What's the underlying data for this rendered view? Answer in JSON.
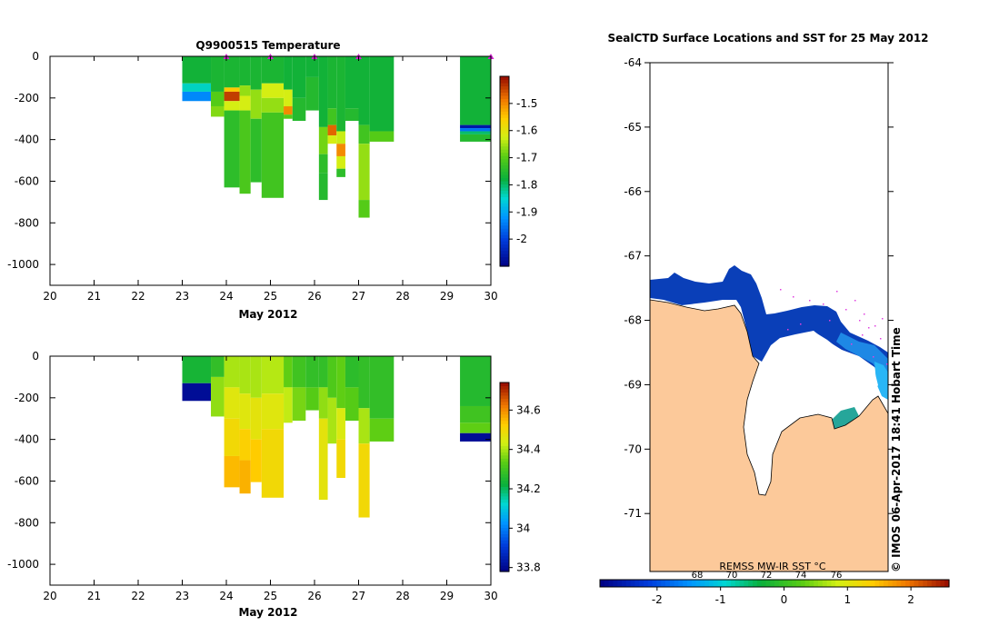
{
  "chart_data": [
    {
      "type": "heatmap",
      "title": "Q9900515  Temperature",
      "xlabel": "May 2012",
      "ylabel": "",
      "xlim": [
        20,
        30
      ],
      "ylim": [
        -1100,
        0
      ],
      "xticks": [
        20,
        21,
        22,
        23,
        24,
        25,
        26,
        27,
        28,
        29,
        30
      ],
      "yticks": [
        0,
        -200,
        -400,
        -600,
        -800,
        -1000
      ],
      "colorbar": {
        "min": -2.1,
        "max": -1.4,
        "ticks": [
          -1.5,
          -1.6,
          -1.7,
          -1.8,
          -1.9,
          -2
        ]
      },
      "markers_x": [
        24,
        25,
        26,
        27,
        30
      ],
      "profiles": [
        {
          "x0": 23.0,
          "x1": 23.65,
          "bottom": -215,
          "layers": [
            [
              0,
              -1.77
            ],
            [
              -130,
              -1.84
            ],
            [
              -170,
              -1.93
            ]
          ]
        },
        {
          "x0": 23.65,
          "x1": 23.95,
          "bottom": -290,
          "layers": [
            [
              0,
              -1.76
            ],
            [
              -170,
              -1.7
            ],
            [
              -240,
              -1.67
            ]
          ]
        },
        {
          "x0": 23.95,
          "x1": 24.3,
          "bottom": -630,
          "layers": [
            [
              0,
              -1.76
            ],
            [
              -150,
              -1.55
            ],
            [
              -170,
              -1.44
            ],
            [
              -215,
              -1.62
            ],
            [
              -260,
              -1.74
            ]
          ]
        },
        {
          "x0": 24.3,
          "x1": 24.55,
          "bottom": -660,
          "layers": [
            [
              0,
              -1.76
            ],
            [
              -140,
              -1.66
            ],
            [
              -190,
              -1.62
            ],
            [
              -260,
              -1.71
            ]
          ]
        },
        {
          "x0": 24.55,
          "x1": 24.8,
          "bottom": -605,
          "layers": [
            [
              0,
              -1.76
            ],
            [
              -160,
              -1.66
            ],
            [
              -300,
              -1.74
            ]
          ]
        },
        {
          "x0": 24.8,
          "x1": 25.3,
          "bottom": -680,
          "layers": [
            [
              0,
              -1.76
            ],
            [
              -130,
              -1.62
            ],
            [
              -200,
              -1.66
            ],
            [
              -270,
              -1.72
            ]
          ]
        },
        {
          "x0": 25.3,
          "x1": 25.5,
          "bottom": -300,
          "layers": [
            [
              0,
              -1.77
            ],
            [
              -160,
              -1.62
            ],
            [
              -240,
              -1.5
            ],
            [
              -280,
              -1.7
            ]
          ]
        },
        {
          "x0": 25.5,
          "x1": 25.8,
          "bottom": -310,
          "layers": [
            [
              0,
              -1.77
            ],
            [
              -200,
              -1.75
            ]
          ]
        },
        {
          "x0": 25.8,
          "x1": 26.1,
          "bottom": -260,
          "layers": [
            [
              0,
              -1.77
            ],
            [
              -100,
              -1.75
            ]
          ]
        },
        {
          "x0": 26.1,
          "x1": 26.3,
          "bottom": -690,
          "layers": [
            [
              0,
              -1.77
            ],
            [
              -340,
              -1.68
            ],
            [
              -470,
              -1.74
            ],
            [
              -560,
              -1.75
            ]
          ]
        },
        {
          "x0": 26.3,
          "x1": 26.5,
          "bottom": -420,
          "layers": [
            [
              0,
              -1.76
            ],
            [
              -250,
              -1.72
            ],
            [
              -330,
              -1.47
            ],
            [
              -380,
              -1.62
            ]
          ]
        },
        {
          "x0": 26.5,
          "x1": 26.7,
          "bottom": -580,
          "layers": [
            [
              0,
              -1.76
            ],
            [
              -360,
              -1.63
            ],
            [
              -420,
              -1.5
            ],
            [
              -480,
              -1.62
            ],
            [
              -540,
              -1.74
            ]
          ]
        },
        {
          "x0": 26.7,
          "x1": 27.0,
          "bottom": -310,
          "layers": [
            [
              0,
              -1.77
            ],
            [
              -250,
              -1.75
            ]
          ]
        },
        {
          "x0": 27.0,
          "x1": 27.25,
          "bottom": -775,
          "layers": [
            [
              0,
              -1.77
            ],
            [
              -330,
              -1.72
            ],
            [
              -420,
              -1.66
            ],
            [
              -690,
              -1.7
            ]
          ]
        },
        {
          "x0": 27.25,
          "x1": 27.8,
          "bottom": -410,
          "layers": [
            [
              0,
              -1.77
            ],
            [
              -360,
              -1.7
            ]
          ]
        },
        {
          "x0": 29.3,
          "x1": 30.0,
          "bottom": -410,
          "layers": [
            [
              0,
              -1.77
            ],
            [
              -330,
              -2.06
            ],
            [
              -345,
              -1.95
            ],
            [
              -360,
              -1.8
            ],
            [
              -375,
              -1.75
            ]
          ]
        }
      ]
    },
    {
      "type": "heatmap",
      "title": "",
      "xlabel": "May 2012",
      "ylabel": "",
      "xlim": [
        20,
        30
      ],
      "ylim": [
        -1100,
        0
      ],
      "xticks": [
        20,
        21,
        22,
        23,
        24,
        25,
        26,
        27,
        28,
        29,
        30
      ],
      "yticks": [
        0,
        -200,
        -400,
        -600,
        -800,
        -1000
      ],
      "colorbar": {
        "min": 33.78,
        "max": 34.74,
        "ticks": [
          34.6,
          34.4,
          34.2,
          34,
          33.8
        ]
      },
      "profiles": [
        {
          "x0": 23.0,
          "x1": 23.65,
          "bottom": -215,
          "layers": [
            [
              0,
              34.24
            ],
            [
              -130,
              33.81
            ]
          ]
        },
        {
          "x0": 23.65,
          "x1": 23.95,
          "bottom": -290,
          "layers": [
            [
              0,
              34.28
            ],
            [
              -100,
              34.38
            ]
          ]
        },
        {
          "x0": 23.95,
          "x1": 24.3,
          "bottom": -630,
          "layers": [
            [
              0,
              34.4
            ],
            [
              -150,
              34.46
            ],
            [
              -300,
              34.5
            ],
            [
              -480,
              34.55
            ]
          ]
        },
        {
          "x0": 24.3,
          "x1": 24.55,
          "bottom": -660,
          "layers": [
            [
              0,
              34.4
            ],
            [
              -180,
              34.46
            ],
            [
              -350,
              34.52
            ],
            [
              -500,
              34.56
            ]
          ]
        },
        {
          "x0": 24.55,
          "x1": 24.8,
          "bottom": -605,
          "layers": [
            [
              0,
              34.4
            ],
            [
              -200,
              34.47
            ],
            [
              -400,
              34.53
            ]
          ]
        },
        {
          "x0": 24.8,
          "x1": 25.3,
          "bottom": -680,
          "layers": [
            [
              0,
              34.41
            ],
            [
              -180,
              34.46
            ],
            [
              -350,
              34.5
            ]
          ]
        },
        {
          "x0": 25.3,
          "x1": 25.5,
          "bottom": -320,
          "layers": [
            [
              0,
              34.34
            ],
            [
              -150,
              34.42
            ]
          ]
        },
        {
          "x0": 25.5,
          "x1": 25.8,
          "bottom": -310,
          "layers": [
            [
              0,
              34.3
            ],
            [
              -150,
              34.36
            ]
          ]
        },
        {
          "x0": 25.8,
          "x1": 26.1,
          "bottom": -260,
          "layers": [
            [
              0,
              34.28
            ],
            [
              -150,
              34.33
            ]
          ]
        },
        {
          "x0": 26.1,
          "x1": 26.3,
          "bottom": -690,
          "layers": [
            [
              0,
              34.28
            ],
            [
              -150,
              34.38
            ],
            [
              -300,
              34.47
            ]
          ]
        },
        {
          "x0": 26.3,
          "x1": 26.5,
          "bottom": -420,
          "layers": [
            [
              0,
              34.32
            ],
            [
              -200,
              34.4
            ]
          ]
        },
        {
          "x0": 26.5,
          "x1": 26.7,
          "bottom": -585,
          "layers": [
            [
              0,
              34.34
            ],
            [
              -250,
              34.45
            ],
            [
              -400,
              34.5
            ]
          ]
        },
        {
          "x0": 26.7,
          "x1": 27.0,
          "bottom": -310,
          "layers": [
            [
              0,
              34.27
            ],
            [
              -150,
              34.33
            ]
          ]
        },
        {
          "x0": 27.0,
          "x1": 27.25,
          "bottom": -775,
          "layers": [
            [
              0,
              34.28
            ],
            [
              -250,
              34.4
            ],
            [
              -420,
              34.5
            ]
          ]
        },
        {
          "x0": 27.25,
          "x1": 27.8,
          "bottom": -410,
          "layers": [
            [
              0,
              34.28
            ],
            [
              -300,
              34.34
            ]
          ]
        },
        {
          "x0": 29.3,
          "x1": 30.0,
          "bottom": -410,
          "layers": [
            [
              0,
              34.26
            ],
            [
              -240,
              34.3
            ],
            [
              -320,
              34.34
            ],
            [
              -370,
              33.81
            ]
          ]
        }
      ]
    },
    {
      "type": "map",
      "title": "SealCTD Surface Locations and SST for 25 May 2012",
      "ylim": [
        -71.9,
        -64.0
      ],
      "yticks": [
        -64,
        -65,
        -66,
        -67,
        -68,
        -69,
        -70,
        -71
      ],
      "colorbar": {
        "label": "REMSS MW-IR SST °C",
        "min": -2.9,
        "max": 2.6,
        "ticks": [
          -2,
          -1,
          0,
          1,
          2
        ],
        "top_ticks": [
          68,
          70,
          72,
          74,
          76
        ]
      }
    }
  ],
  "credit": "© IMOS 06-Apr-2017 18:41 Hobart Time"
}
